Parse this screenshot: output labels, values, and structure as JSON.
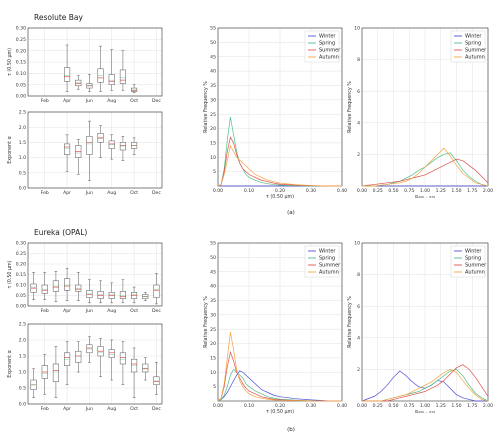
{
  "colors": {
    "Winter": "#4f4fd9",
    "Spring": "#4fc08a",
    "Summer": "#e05252",
    "Autumn": "#f5a442",
    "median": "#e05252",
    "mean": "#3cb371",
    "box": "#555555"
  },
  "captions": {
    "a": "(a)",
    "b": "(b)"
  },
  "chart_data": [
    {
      "id": "resolute-tau",
      "type": "box",
      "title": "Resolute Bay",
      "ylabel": "τ (0.50 μm)",
      "ylim": [
        0,
        0.3
      ],
      "yticks": [
        0.0,
        0.05,
        0.1,
        0.15,
        0.2,
        0.25,
        0.3
      ],
      "ytick_decimals": 2,
      "xlim": [
        0.5,
        12.5
      ],
      "xtick_positions": [
        2,
        4,
        6,
        8,
        10,
        12
      ],
      "xtick_labels": [
        "Feb",
        "Apr",
        "Jun",
        "Aug",
        "Oct",
        "Dec"
      ],
      "boxes": [
        {
          "x": 4,
          "wl": 0.02,
          "q1": 0.065,
          "med": 0.085,
          "mean": 0.09,
          "q3": 0.125,
          "wh": 0.225
        },
        {
          "x": 5,
          "wl": 0.03,
          "q1": 0.045,
          "med": 0.055,
          "mean": 0.06,
          "q3": 0.07,
          "wh": 0.09
        },
        {
          "x": 6,
          "wl": 0.02,
          "q1": 0.035,
          "med": 0.045,
          "mean": 0.048,
          "q3": 0.055,
          "wh": 0.095
        },
        {
          "x": 7,
          "wl": 0.02,
          "q1": 0.06,
          "med": 0.08,
          "mean": 0.09,
          "q3": 0.12,
          "wh": 0.22
        },
        {
          "x": 8,
          "wl": 0.025,
          "q1": 0.05,
          "med": 0.065,
          "mean": 0.07,
          "q3": 0.095,
          "wh": 0.205
        },
        {
          "x": 9,
          "wl": 0.025,
          "q1": 0.055,
          "med": 0.07,
          "mean": 0.08,
          "q3": 0.115,
          "wh": 0.2
        },
        {
          "x": 10,
          "wl": 0.015,
          "q1": 0.02,
          "med": 0.025,
          "mean": 0.027,
          "q3": 0.035,
          "wh": 0.05
        }
      ]
    },
    {
      "id": "resolute-alpha",
      "type": "box",
      "title": "",
      "ylabel": "Exponent α",
      "ylim": [
        0,
        2.5
      ],
      "yticks": [
        0.0,
        0.5,
        1.0,
        1.5,
        2.0,
        2.5
      ],
      "ytick_decimals": 1,
      "xlim": [
        0.5,
        12.5
      ],
      "xtick_positions": [
        2,
        4,
        6,
        8,
        10,
        12
      ],
      "xtick_labels": [
        "Feb",
        "Apr",
        "Jun",
        "Aug",
        "Oct",
        "Dec"
      ],
      "boxes": [
        {
          "x": 4,
          "wl": 0.55,
          "q1": 1.1,
          "med": 1.35,
          "mean": 1.3,
          "q3": 1.45,
          "wh": 1.75
        },
        {
          "x": 5,
          "wl": 0.45,
          "q1": 1.0,
          "med": 1.2,
          "mean": 1.15,
          "q3": 1.4,
          "wh": 1.6
        },
        {
          "x": 6,
          "wl": 0.25,
          "q1": 1.1,
          "med": 1.5,
          "mean": 1.45,
          "q3": 1.7,
          "wh": 2.2
        },
        {
          "x": 7,
          "wl": 1.0,
          "q1": 1.5,
          "med": 1.65,
          "mean": 1.62,
          "q3": 1.8,
          "wh": 2.05
        },
        {
          "x": 8,
          "wl": 0.95,
          "q1": 1.3,
          "med": 1.45,
          "mean": 1.42,
          "q3": 1.55,
          "wh": 1.75
        },
        {
          "x": 9,
          "wl": 0.9,
          "q1": 1.25,
          "med": 1.4,
          "mean": 1.38,
          "q3": 1.5,
          "wh": 1.7
        },
        {
          "x": 10,
          "wl": 1.1,
          "q1": 1.3,
          "med": 1.4,
          "mean": 1.4,
          "q3": 1.5,
          "wh": 1.65
        }
      ]
    },
    {
      "id": "resolute-tau-hist",
      "type": "line",
      "title": "",
      "xlabel": "τ (0.50 μm)",
      "ylabel": "Relative Frequency %",
      "xlim": [
        0,
        0.4
      ],
      "ylim": [
        0,
        55
      ],
      "xticks": [
        0.0,
        0.1,
        0.2,
        0.3,
        0.4
      ],
      "xtick_decimals": 2,
      "yticks": [
        5,
        10,
        15,
        20,
        25,
        30,
        35,
        40,
        45,
        50,
        55
      ],
      "legend": "top-right",
      "x": [
        0,
        0.01,
        0.02,
        0.03,
        0.04,
        0.05,
        0.06,
        0.07,
        0.08,
        0.09,
        0.1,
        0.12,
        0.14,
        0.16,
        0.18,
        0.2,
        0.25,
        0.3,
        0.35,
        0.4
      ],
      "series": [
        {
          "name": "Winter",
          "values": [
            0,
            0,
            0,
            0,
            0,
            0,
            0,
            0,
            0,
            0,
            0,
            0,
            0,
            0,
            0,
            0,
            0,
            0,
            0,
            0
          ]
        },
        {
          "name": "Spring",
          "values": [
            0,
            0.5,
            6,
            16,
            24,
            18,
            12,
            8,
            6,
            4,
            3,
            2,
            1.2,
            0.8,
            0.5,
            0.3,
            0.1,
            0,
            0,
            0
          ]
        },
        {
          "name": "Summer",
          "values": [
            0,
            0.5,
            5,
            12,
            17,
            15,
            11,
            8,
            6,
            5,
            4,
            3,
            2,
            1.5,
            1,
            0.6,
            0.3,
            0.1,
            0,
            0
          ]
        },
        {
          "name": "Autumn",
          "values": [
            0,
            0.5,
            4,
            9,
            14,
            12,
            10,
            9,
            8,
            7,
            6,
            4,
            3,
            2,
            1.5,
            1,
            0.5,
            0.2,
            0,
            0
          ]
        }
      ]
    },
    {
      "id": "resolute-alpha-hist",
      "type": "line",
      "title": "",
      "xlabel": "α₄₄₀ ₋ ₈₇₀",
      "ylabel": "Relative Frequency %",
      "xlim": [
        0,
        2
      ],
      "ylim": [
        0,
        10
      ],
      "xticks": [
        0.0,
        0.25,
        0.5,
        0.75,
        1.0,
        1.25,
        1.5,
        1.75,
        2.0
      ],
      "xtick_decimals": 2,
      "yticks": [
        2,
        4,
        6,
        8,
        10
      ],
      "legend": "top-right",
      "x": [
        0,
        0.2,
        0.4,
        0.6,
        0.7,
        0.8,
        0.9,
        1.0,
        1.1,
        1.2,
        1.3,
        1.4,
        1.5,
        1.6,
        1.7,
        1.8,
        1.9,
        2.0
      ],
      "series": [
        {
          "name": "Winter",
          "values": [
            0,
            0,
            0,
            0,
            0,
            0,
            0,
            0,
            0,
            0,
            0,
            0,
            0,
            0,
            0,
            0,
            0,
            0
          ]
        },
        {
          "name": "Spring",
          "values": [
            0,
            0,
            0.1,
            0.3,
            0.5,
            0.7,
            1.0,
            1.2,
            1.5,
            1.8,
            2.0,
            2.1,
            1.6,
            1.0,
            0.6,
            0.3,
            0.1,
            0
          ]
        },
        {
          "name": "Summer",
          "values": [
            0,
            0.1,
            0.2,
            0.3,
            0.4,
            0.5,
            0.6,
            0.7,
            0.9,
            1.1,
            1.3,
            1.5,
            1.7,
            1.6,
            1.3,
            1.0,
            0.6,
            0.2
          ]
        },
        {
          "name": "Autumn",
          "values": [
            0,
            0,
            0.1,
            0.2,
            0.3,
            0.5,
            0.8,
            1.2,
            1.6,
            2.0,
            2.4,
            1.9,
            1.3,
            0.8,
            0.5,
            0.2,
            0.1,
            0
          ]
        }
      ]
    },
    {
      "id": "eureka-tau",
      "type": "box",
      "title": "Eureka (OPAL)",
      "ylabel": "τ (0.50 μm)",
      "ylim": [
        0,
        0.3
      ],
      "yticks": [
        0.0,
        0.05,
        0.1,
        0.15,
        0.2,
        0.25,
        0.3
      ],
      "ytick_decimals": 2,
      "xlim": [
        0.5,
        12.5
      ],
      "xtick_positions": [
        2,
        4,
        6,
        8,
        10,
        12
      ],
      "xtick_labels": [
        "Feb",
        "Apr",
        "Jun",
        "Aug",
        "Oct",
        "Dec"
      ],
      "boxes": [
        {
          "x": 1,
          "wl": 0.03,
          "q1": 0.065,
          "med": 0.085,
          "mean": 0.09,
          "q3": 0.105,
          "wh": 0.16
        },
        {
          "x": 2,
          "wl": 0.03,
          "q1": 0.06,
          "med": 0.075,
          "mean": 0.08,
          "q3": 0.1,
          "wh": 0.16
        },
        {
          "x": 3,
          "wl": 0.02,
          "q1": 0.07,
          "med": 0.09,
          "mean": 0.095,
          "q3": 0.12,
          "wh": 0.165
        },
        {
          "x": 4,
          "wl": 0.025,
          "q1": 0.075,
          "med": 0.095,
          "mean": 0.1,
          "q3": 0.13,
          "wh": 0.18
        },
        {
          "x": 5,
          "wl": 0.025,
          "q1": 0.07,
          "med": 0.08,
          "mean": 0.085,
          "q3": 0.1,
          "wh": 0.16
        },
        {
          "x": 6,
          "wl": 0.015,
          "q1": 0.04,
          "med": 0.055,
          "mean": 0.06,
          "q3": 0.075,
          "wh": 0.125
        },
        {
          "x": 7,
          "wl": 0.015,
          "q1": 0.035,
          "med": 0.05,
          "mean": 0.055,
          "q3": 0.07,
          "wh": 0.12
        },
        {
          "x": 8,
          "wl": 0.015,
          "q1": 0.035,
          "med": 0.05,
          "mean": 0.055,
          "q3": 0.065,
          "wh": 0.11
        },
        {
          "x": 9,
          "wl": 0.015,
          "q1": 0.035,
          "med": 0.045,
          "mean": 0.05,
          "q3": 0.07,
          "wh": 0.125
        },
        {
          "x": 10,
          "wl": 0.015,
          "q1": 0.035,
          "med": 0.05,
          "mean": 0.055,
          "q3": 0.065,
          "wh": 0.09
        },
        {
          "x": 11,
          "wl": 0.025,
          "q1": 0.035,
          "med": 0.045,
          "mean": 0.045,
          "q3": 0.055,
          "wh": 0.065
        },
        {
          "x": 12,
          "wl": 0.01,
          "q1": 0.04,
          "med": 0.075,
          "mean": 0.08,
          "q3": 0.1,
          "wh": 0.155
        }
      ]
    },
    {
      "id": "eureka-alpha",
      "type": "box",
      "title": "",
      "ylabel": "Exponent α",
      "ylim": [
        0,
        2.5
      ],
      "yticks": [
        0.0,
        0.5,
        1.0,
        1.5,
        2.0,
        2.5
      ],
      "ytick_decimals": 1,
      "xlim": [
        0.5,
        12.5
      ],
      "xtick_positions": [
        2,
        4,
        6,
        8,
        10,
        12
      ],
      "xtick_labels": [
        "Feb",
        "Apr",
        "Jun",
        "Aug",
        "Oct",
        "Dec"
      ],
      "boxes": [
        {
          "x": 1,
          "wl": 0.2,
          "q1": 0.45,
          "med": 0.6,
          "mean": 0.6,
          "q3": 0.75,
          "wh": 1.1
        },
        {
          "x": 2,
          "wl": 0.3,
          "q1": 0.8,
          "med": 1.0,
          "mean": 0.95,
          "q3": 1.2,
          "wh": 1.55
        },
        {
          "x": 3,
          "wl": 0.2,
          "q1": 0.7,
          "med": 1.05,
          "mean": 1.0,
          "q3": 1.25,
          "wh": 1.8
        },
        {
          "x": 4,
          "wl": 0.6,
          "q1": 1.2,
          "med": 1.45,
          "mean": 1.4,
          "q3": 1.6,
          "wh": 1.95
        },
        {
          "x": 5,
          "wl": 1.0,
          "q1": 1.3,
          "med": 1.5,
          "mean": 1.5,
          "q3": 1.65,
          "wh": 1.95
        },
        {
          "x": 6,
          "wl": 1.3,
          "q1": 1.6,
          "med": 1.75,
          "mean": 1.72,
          "q3": 1.85,
          "wh": 2.1
        },
        {
          "x": 7,
          "wl": 0.85,
          "q1": 1.5,
          "med": 1.65,
          "mean": 1.62,
          "q3": 1.8,
          "wh": 2.05
        },
        {
          "x": 8,
          "wl": 0.75,
          "q1": 1.45,
          "med": 1.6,
          "mean": 1.55,
          "q3": 1.7,
          "wh": 2.0
        },
        {
          "x": 9,
          "wl": 0.6,
          "q1": 1.25,
          "med": 1.45,
          "mean": 1.4,
          "q3": 1.6,
          "wh": 1.95
        },
        {
          "x": 10,
          "wl": 0.2,
          "q1": 1.0,
          "med": 1.25,
          "mean": 1.2,
          "q3": 1.4,
          "wh": 1.75
        },
        {
          "x": 11,
          "wl": 0.75,
          "q1": 1.0,
          "med": 1.1,
          "mean": 1.12,
          "q3": 1.25,
          "wh": 1.45
        },
        {
          "x": 12,
          "wl": 0.3,
          "q1": 0.6,
          "med": 0.7,
          "mean": 0.72,
          "q3": 0.85,
          "wh": 1.3
        }
      ]
    },
    {
      "id": "eureka-tau-hist",
      "type": "line",
      "title": "",
      "xlabel": "τ (0.50 μm)",
      "ylabel": "Relative Frequency %",
      "xlim": [
        0,
        0.4
      ],
      "ylim": [
        0,
        55
      ],
      "xticks": [
        0.0,
        0.1,
        0.2,
        0.3,
        0.4
      ],
      "xtick_decimals": 2,
      "yticks": [
        5,
        10,
        15,
        20,
        25,
        30,
        35,
        40,
        45,
        50,
        55
      ],
      "legend": "top-right",
      "x": [
        0,
        0.01,
        0.02,
        0.03,
        0.04,
        0.05,
        0.06,
        0.07,
        0.08,
        0.09,
        0.1,
        0.12,
        0.14,
        0.16,
        0.18,
        0.2,
        0.25,
        0.3,
        0.35,
        0.4
      ],
      "series": [
        {
          "name": "Winter",
          "values": [
            0,
            0.5,
            1.5,
            3,
            5,
            7,
            9,
            10.5,
            10,
            9,
            8,
            6,
            4,
            3,
            2,
            1.5,
            0.8,
            0.4,
            0.1,
            0
          ]
        },
        {
          "name": "Spring",
          "values": [
            0,
            0.5,
            2,
            5,
            9,
            11,
            10,
            9,
            8,
            6,
            5,
            3.5,
            2.5,
            1.5,
            1,
            0.6,
            0.3,
            0.1,
            0,
            0
          ]
        },
        {
          "name": "Summer",
          "values": [
            0,
            1,
            5,
            12,
            17,
            14,
            10,
            8,
            6,
            4.5,
            3.5,
            2.5,
            1.5,
            1,
            0.6,
            0.4,
            0.2,
            0,
            0,
            0
          ]
        },
        {
          "name": "Autumn",
          "values": [
            0,
            1,
            6,
            15,
            24,
            18,
            11,
            7,
            5,
            3.5,
            2.5,
            1.5,
            1,
            0.6,
            0.4,
            0.2,
            0.1,
            0,
            0,
            0
          ]
        }
      ]
    },
    {
      "id": "eureka-alpha-hist",
      "type": "line",
      "title": "",
      "xlabel": "α₄₄₀ ₋ ₈₇₀",
      "ylabel": "Relative Frequency %",
      "xlim": [
        0,
        2
      ],
      "ylim": [
        0,
        10
      ],
      "xticks": [
        0.0,
        0.25,
        0.5,
        0.75,
        1.0,
        1.25,
        1.5,
        1.75,
        2.0
      ],
      "xtick_decimals": 2,
      "yticks": [
        2,
        4,
        6,
        8,
        10
      ],
      "legend": "top-right",
      "x": [
        0,
        0.2,
        0.3,
        0.4,
        0.5,
        0.6,
        0.7,
        0.8,
        0.9,
        1.0,
        1.1,
        1.2,
        1.3,
        1.4,
        1.5,
        1.6,
        1.7,
        1.8,
        1.9,
        2.0
      ],
      "series": [
        {
          "name": "Winter",
          "values": [
            0,
            0.3,
            0.6,
            1.0,
            1.5,
            1.9,
            1.6,
            1.2,
            0.9,
            0.8,
            1.0,
            1.3,
            1.2,
            0.8,
            0.4,
            0.2,
            0.1,
            0,
            0,
            0
          ]
        },
        {
          "name": "Spring",
          "values": [
            0,
            0,
            0,
            0.1,
            0.2,
            0.3,
            0.4,
            0.5,
            0.6,
            0.8,
            1.0,
            1.3,
            1.6,
            1.9,
            2.0,
            1.6,
            1.0,
            0.5,
            0.2,
            0
          ]
        },
        {
          "name": "Summer",
          "values": [
            0,
            0,
            0,
            0,
            0.1,
            0.2,
            0.3,
            0.4,
            0.5,
            0.6,
            0.8,
            1.0,
            1.3,
            1.7,
            2.1,
            2.3,
            2.0,
            1.5,
            0.9,
            0.3
          ]
        },
        {
          "name": "Autumn",
          "values": [
            0,
            0,
            0,
            0.1,
            0.2,
            0.3,
            0.4,
            0.6,
            0.8,
            1.0,
            1.2,
            1.5,
            1.8,
            2.0,
            1.8,
            1.3,
            0.8,
            0.4,
            0.1,
            0
          ]
        }
      ]
    }
  ]
}
